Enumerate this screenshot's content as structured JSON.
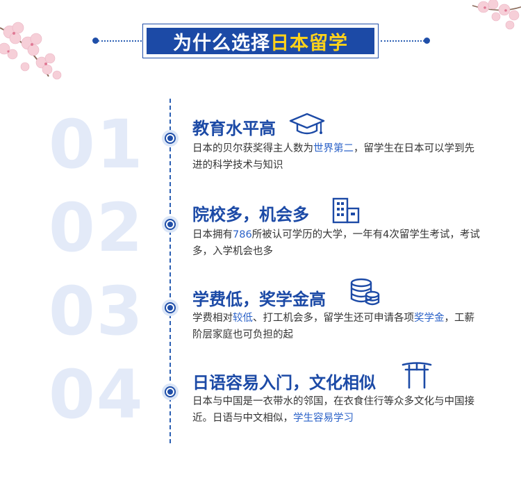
{
  "header": {
    "title_prefix": "为什么选择",
    "title_highlight": "日本留学"
  },
  "items": [
    {
      "number": "01",
      "title": "教育水平高",
      "icon": "graduation-cap-icon",
      "desc_pre": "日本的贝尔获奖得主人数为",
      "desc_hl": "世界第二",
      "desc_post": "，留学生在日本可以学到先进的科学技术与知识"
    },
    {
      "number": "02",
      "title": "院校多，机会多",
      "icon": "building-icon",
      "desc_pre": "日本拥有",
      "desc_hl": "786",
      "desc_post": "所被认可学历的大学，一年有4次留学生考试，考试多，入学机会也多"
    },
    {
      "number": "03",
      "title": "学费低，奖学金高",
      "icon": "coins-stack-icon",
      "desc_pre": "学费相对",
      "desc_hl": "较低",
      "desc_mid": "、打工机会多，留学生还可申请各项",
      "desc_hl2": "奖学金",
      "desc_post": "，工薪阶层家庭也可负担的起"
    },
    {
      "number": "04",
      "title": "日语容易入门，文化相似",
      "icon": "torii-gate-icon",
      "desc_pre": "日本与中国是一衣带水的邻国，在衣食住行等众多文化与中国接近。日语与中文相似，",
      "desc_hl": "学生容易学习",
      "desc_post": ""
    }
  ],
  "colors": {
    "primary": "#1c4aa6",
    "highlight": "#ffd21a",
    "link": "#2b62c8",
    "number_watermark": "#e3eaf8"
  }
}
